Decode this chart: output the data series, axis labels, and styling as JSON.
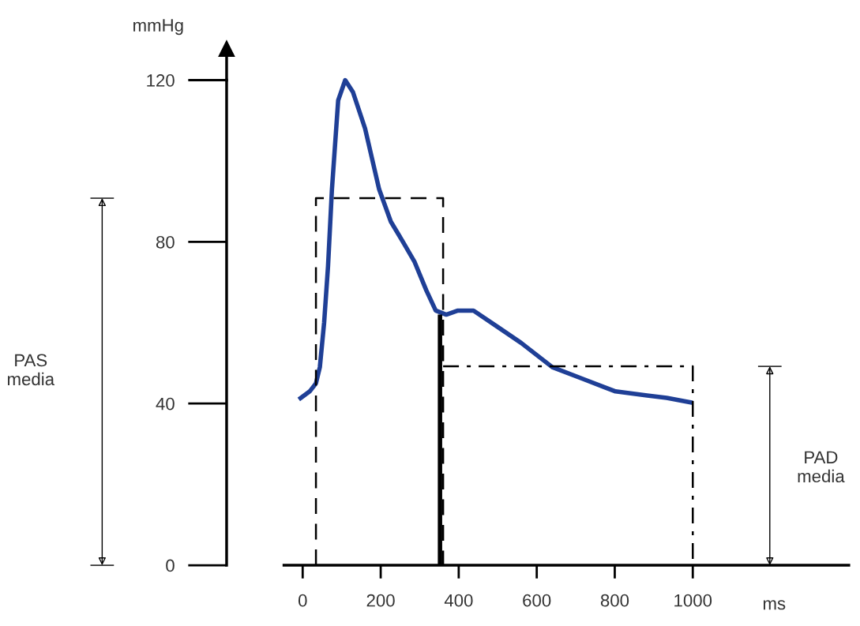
{
  "chart_data": {
    "type": "line",
    "xlabel": "ms",
    "xlim": [
      -195,
      1400
    ],
    "ylim": [
      0,
      120
    ],
    "xticks": [
      0,
      200,
      400,
      600,
      800,
      1000
    ],
    "yticks": [
      0,
      40,
      80,
      120
    ],
    "grid": false,
    "legend": false,
    "series": [
      {
        "color": "#1f3f96",
        "line_style": "solid",
        "x": [
          -10,
          18,
          34,
          44,
          55,
          65,
          75,
          91,
          109,
          129,
          160,
          196,
          226,
          257,
          287,
          317,
          341,
          368,
          398,
          438,
          499,
          560,
          640,
          721,
          802,
          883,
          933,
          1000
        ],
        "values": [
          41,
          43,
          45,
          49,
          60,
          74,
          93,
          115,
          120,
          117,
          108,
          93,
          85,
          80,
          75,
          68,
          63,
          62,
          63,
          63,
          59,
          55,
          49,
          46,
          43,
          42,
          41.4,
          40.2
        ]
      },
      {
        "color": "#000000",
        "line_style": "dashed",
        "x": [
          34,
          34,
          360,
          360
        ],
        "values": [
          0,
          90.8,
          90.8,
          0
        ]
      },
      {
        "color": "#000000",
        "line_style": "dashdot",
        "x": [
          360,
          1000,
          1000
        ],
        "values": [
          49.2,
          49.2,
          0
        ]
      },
      {
        "color": "#000000",
        "line_style": "solid",
        "x": [
          352,
          352
        ],
        "values": [
          0,
          62
        ]
      }
    ],
    "annotations": [
      "mmHg",
      "PAS\nmedia",
      "PAD\nmedia"
    ]
  }
}
